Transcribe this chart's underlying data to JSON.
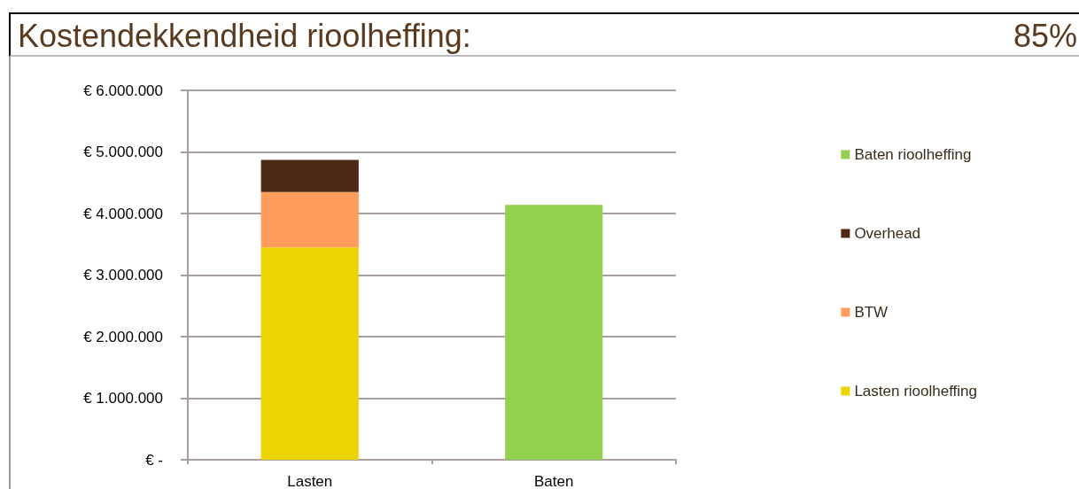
{
  "chart_data": {
    "type": "bar",
    "title": "Kostendekkendheid rioolheffing:",
    "annotations": [
      "85%"
    ],
    "categories": [
      "Lasten",
      "Baten"
    ],
    "stacked": true,
    "series": [
      {
        "name": "Lasten rioolheffing",
        "color": "#ecd400",
        "values": [
          3450000,
          null
        ]
      },
      {
        "name": "BTW",
        "color": "#ff9b5b",
        "values": [
          900000,
          null
        ]
      },
      {
        "name": "Overhead",
        "color": "#4c2815",
        "values": [
          520000,
          null
        ]
      },
      {
        "name": "Baten rioolheffing",
        "color": "#92d050",
        "values": [
          null,
          4140000
        ]
      }
    ],
    "ylim": [
      0,
      6000000
    ],
    "yticks": [
      {
        "value": 0,
        "label": "€ -"
      },
      {
        "value": 1000000,
        "label": "€ 1.000.000"
      },
      {
        "value": 2000000,
        "label": "€ 2.000.000"
      },
      {
        "value": 3000000,
        "label": "€ 3.000.000"
      },
      {
        "value": 4000000,
        "label": "€ 4.000.000"
      },
      {
        "value": 5000000,
        "label": "€ 5.000.000"
      },
      {
        "value": 6000000,
        "label": "€ 6.000.000"
      }
    ],
    "grid": "y",
    "legend": "right"
  }
}
